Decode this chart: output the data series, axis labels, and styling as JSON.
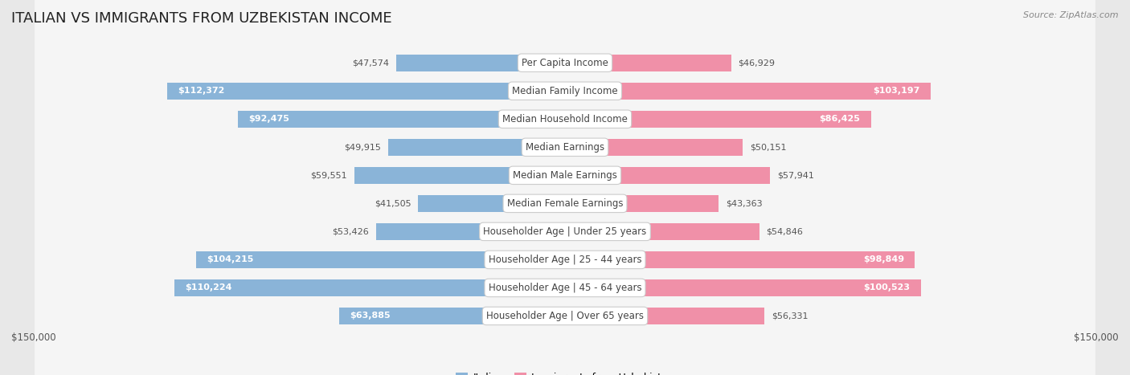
{
  "title": "ITALIAN VS IMMIGRANTS FROM UZBEKISTAN INCOME",
  "source": "Source: ZipAtlas.com",
  "categories": [
    "Per Capita Income",
    "Median Family Income",
    "Median Household Income",
    "Median Earnings",
    "Median Male Earnings",
    "Median Female Earnings",
    "Householder Age | Under 25 years",
    "Householder Age | 25 - 44 years",
    "Householder Age | 45 - 64 years",
    "Householder Age | Over 65 years"
  ],
  "italian_values": [
    47574,
    112372,
    92475,
    49915,
    59551,
    41505,
    53426,
    104215,
    110224,
    63885
  ],
  "uzbek_values": [
    46929,
    103197,
    86425,
    50151,
    57941,
    43363,
    54846,
    98849,
    100523,
    56331
  ],
  "italian_color": "#8ab4d8",
  "uzbek_color": "#f090a8",
  "italian_label": "Italian",
  "uzbek_label": "Immigrants from Uzbekistan",
  "max_value": 150000,
  "background_color": "#e8e8e8",
  "row_bg_color": "#f5f5f5",
  "title_fontsize": 13,
  "label_fontsize": 8.5,
  "value_fontsize": 8,
  "legend_fontsize": 9,
  "source_fontsize": 8,
  "inside_threshold": 60000
}
